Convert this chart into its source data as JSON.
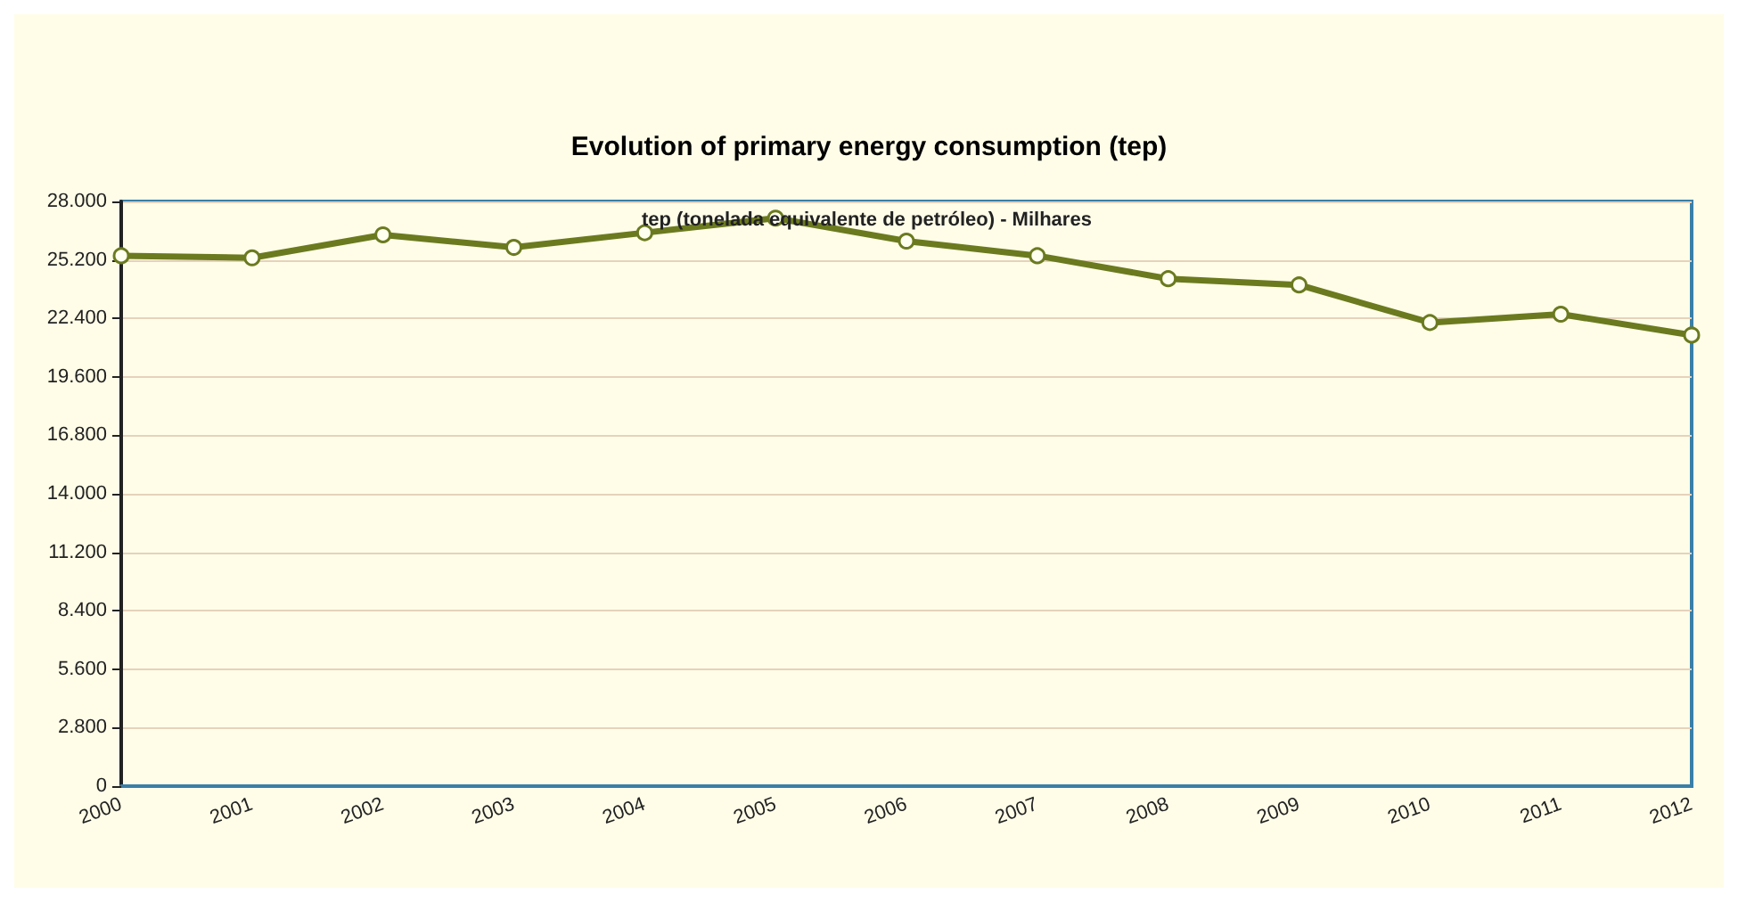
{
  "chart_data": {
    "type": "line",
    "title": "Evolution of primary energy consumption (tep)",
    "annotations": [
      "tep (tonelada equivalente de petróleo) - Milhares"
    ],
    "categories": [
      "2000",
      "2001",
      "2002",
      "2003",
      "2004",
      "2005",
      "2006",
      "2007",
      "2008",
      "2009",
      "2010",
      "2011",
      "2012"
    ],
    "series": [
      {
        "color": "#6b7a1f",
        "values": [
          25400,
          25300,
          26400,
          25800,
          26500,
          27200,
          26100,
          25400,
          24300,
          24000,
          22200,
          22600,
          21600
        ]
      }
    ],
    "ylim": [
      0,
      28000
    ],
    "yticks": [
      0,
      {
        "value": 2800,
        "label": "2.800"
      },
      {
        "value": 5600,
        "label": "5.600"
      },
      {
        "value": 8400,
        "label": "8.400"
      },
      {
        "value": 11200,
        "label": "11.200"
      },
      {
        "value": 14000,
        "label": "14.000"
      },
      {
        "value": 16800,
        "label": "16.800"
      },
      {
        "value": 19600,
        "label": "19.600"
      },
      {
        "value": 22400,
        "label": "22.400"
      },
      {
        "value": 25200,
        "label": "25.200"
      },
      {
        "value": 28000,
        "label": "28.000"
      }
    ],
    "grid": "y",
    "marker": "circle",
    "line_style": "solid"
  }
}
